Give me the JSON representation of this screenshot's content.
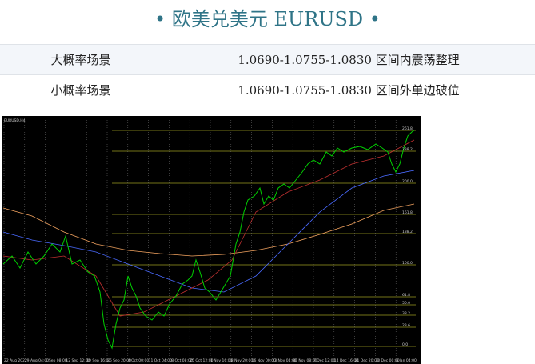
{
  "header": {
    "title": "• 欧美兑美元 EURUSD •"
  },
  "table": {
    "rows": [
      [
        "大概率场景",
        "1.0690-1.0755-1.0830 区间内震荡整理"
      ],
      [
        "小概率场景",
        "1.0690-1.0755-1.0830 区间外单边破位"
      ]
    ]
  },
  "chart": {
    "caption": "EURUSD,H4",
    "fib_levels": [
      "261.8",
      "238.2",
      "200.0",
      "161.8",
      "138.2",
      "100.0",
      "61.8",
      "50.0",
      "38.2",
      "23.6",
      "0.0"
    ],
    "x_labels": [
      "22 Aug 2022",
      "29 Aug 04:00",
      "5 Sep 08:00",
      "12 Sep 12:00",
      "19 Sep 16:00",
      "26 Sep 20:00",
      "4 Oct 00:00",
      "11 Oct 04:00",
      "18 Oct 08:00",
      "25 Oct 12:00",
      "1 Nov 16:00",
      "8 Nov 20:00",
      "16 Nov 00:00",
      "23 Nov 04:00",
      "30 Nov 08:00",
      "7 Dec 12:00",
      "14 Dec 16:00",
      "21 Dec 20:00",
      "30 Dec 00:00",
      "6 Jan 04:00"
    ]
  }
}
